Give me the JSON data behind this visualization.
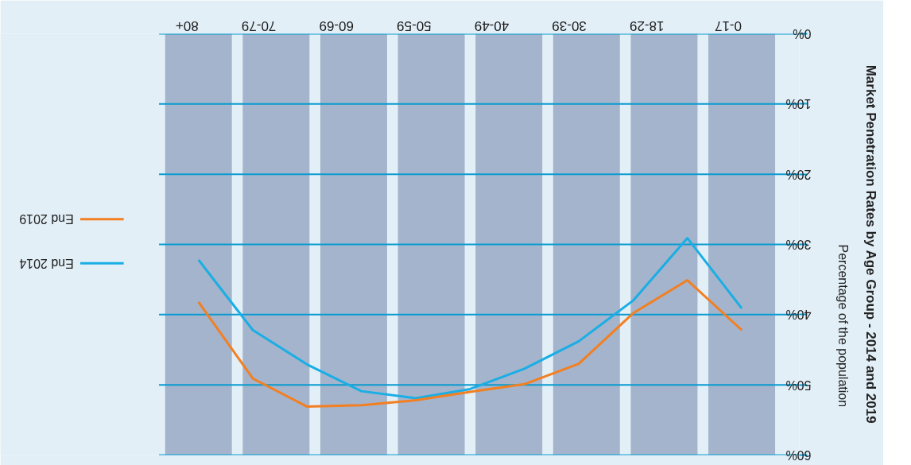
{
  "chart_data": {
    "type": "line",
    "title": "Market Penetration Rates by Age Group - 2014 and 2019",
    "ylabel": "Percentage of the population",
    "categories": [
      null,
      null,
      null,
      null,
      null,
      null,
      null,
      null,
      null,
      null,
      null
    ],
    "series": [
      {
        "name": "End 2014",
        "color": "#1aaee5",
        "values": [
          32.2,
          42.2,
          47.1,
          50.9,
          51.9,
          50.6,
          47.7,
          43.8,
          38.0,
          29.1,
          39.1
        ]
      },
      {
        "name": "End 2019",
        "color": "#f37f21",
        "values": [
          38.2,
          49.1,
          53.1,
          52.9,
          52.2,
          51.0,
          49.9,
          47.0,
          39.8,
          35.1,
          42.2
        ]
      }
    ],
    "annotations": [
      "80+",
      "70-79",
      "60-69",
      "50-59",
      "40-49",
      "30-39",
      "18-29",
      "0-17"
    ],
    "ylim": [
      60,
      0
    ],
    "yticks": [
      {
        "value": 0,
        "label": "0%"
      },
      {
        "value": 10,
        "label": "10%"
      },
      {
        "value": 20,
        "label": "20%"
      },
      {
        "value": 30,
        "label": "30%"
      },
      {
        "value": 40,
        "label": "40%"
      },
      {
        "value": 50,
        "label": "50%"
      },
      {
        "value": 60,
        "label": "60%"
      }
    ],
    "grid": "y",
    "legend": "left",
    "marker": "none",
    "line_style": "solid"
  }
}
